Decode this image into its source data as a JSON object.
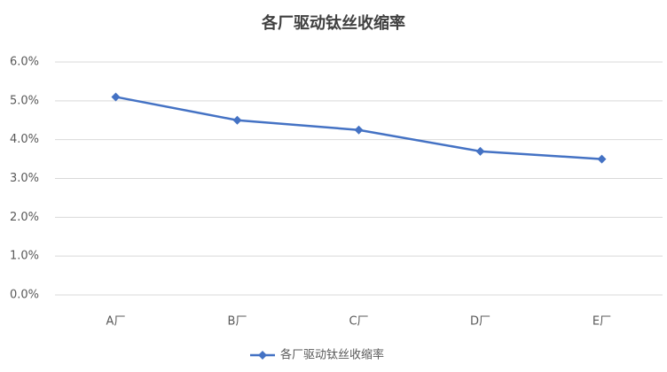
{
  "chart_data": {
    "type": "line",
    "title": "各厂驱动钛丝收缩率",
    "categories": [
      "A厂",
      "B厂",
      "C厂",
      "D厂",
      "E厂"
    ],
    "series": [
      {
        "name": "各厂驱动钛丝收缩率",
        "color": "#4472c4",
        "values": [
          5.1,
          4.5,
          4.25,
          3.7,
          3.5
        ]
      }
    ],
    "ylim": [
      0,
      6
    ],
    "yticks": [
      {
        "value": 0,
        "label": "0.0%"
      },
      {
        "value": 1,
        "label": "1.0%"
      },
      {
        "value": 2,
        "label": "2.0%"
      },
      {
        "value": 3,
        "label": "3.0%"
      },
      {
        "value": 4,
        "label": "4.0%"
      },
      {
        "value": 5,
        "label": "5.0%"
      },
      {
        "value": 6,
        "label": "6.0%"
      }
    ],
    "grid": true,
    "legend": "bottom"
  }
}
